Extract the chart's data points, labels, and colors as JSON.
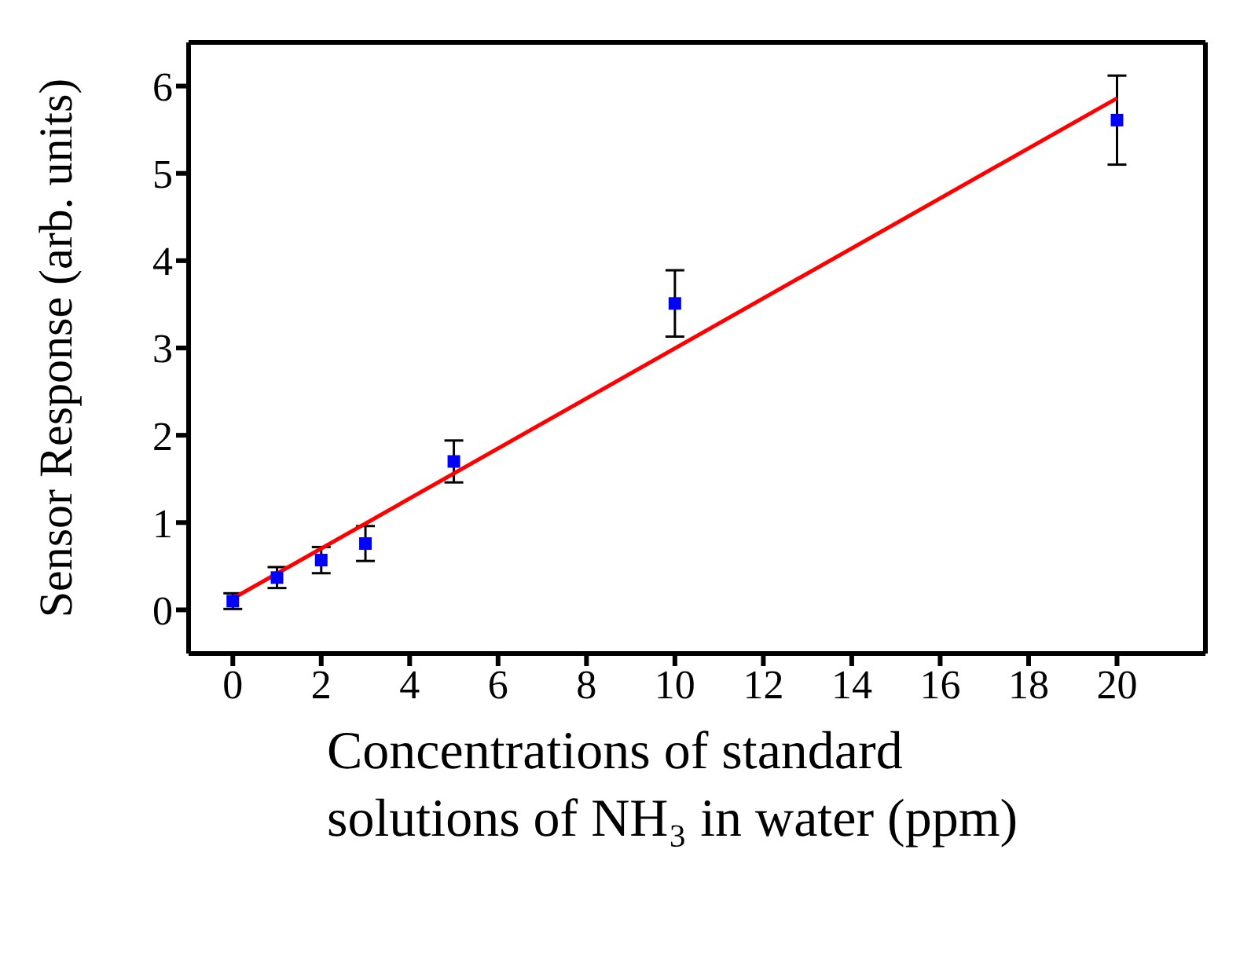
{
  "chart_data": {
    "type": "scatter",
    "xlabel": "Concentrations of standard solutions of NH₃ in water (ppm)",
    "ylabel": "Sensor Response (arb. units)",
    "x": [
      0,
      1,
      2,
      3,
      5,
      10,
      20
    ],
    "xlim": [
      -1,
      22
    ],
    "xticks": [
      0,
      2,
      4,
      6,
      8,
      10,
      12,
      14,
      16,
      18,
      20
    ],
    "ylim": [
      -0.5,
      6.5
    ],
    "yticks": [
      0,
      1,
      2,
      3,
      4,
      5,
      6
    ],
    "grid": false,
    "legend": false,
    "series": [
      {
        "marker": "square",
        "color": "#0000ff",
        "values": [
          0.1,
          0.37,
          0.57,
          0.76,
          1.7,
          3.51,
          5.61
        ],
        "errors": [
          0.09,
          0.12,
          0.15,
          0.2,
          0.24,
          0.38,
          0.51
        ]
      },
      {
        "type": "line",
        "color": "#ff0000",
        "x": [
          0,
          20
        ],
        "values": [
          0.13,
          5.86
        ]
      }
    ]
  }
}
